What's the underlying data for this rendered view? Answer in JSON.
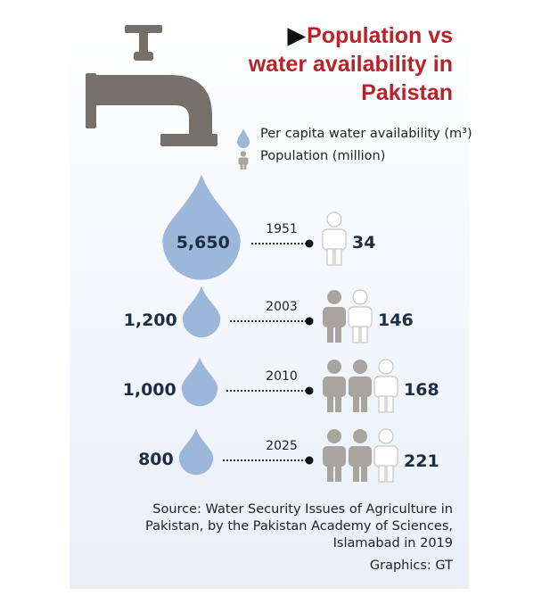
{
  "title": [
    "Population vs",
    "water availability in",
    "Pakistan"
  ],
  "legend": {
    "water": "Per capita water availability (m³)",
    "population": "Population (million)"
  },
  "colors": {
    "title": "#b8232a",
    "drop": "#9cb7d9",
    "person_filled": "#a8a49e",
    "person_outline": "#ffffff",
    "tap": "#76706a",
    "value_text": "#1d2e44"
  },
  "chart_data": {
    "type": "table",
    "title": "Population vs water availability in Pakistan",
    "columns": [
      "Year",
      "Per capita water availability (m³)",
      "Population (million)"
    ],
    "years": [
      "1951",
      "2003",
      "2010",
      "2025"
    ],
    "water_display": [
      "5,650",
      "1,200",
      "1,000",
      "800"
    ],
    "water": [
      5650,
      1200,
      1000,
      800
    ],
    "population": [
      34,
      146,
      168,
      221
    ]
  },
  "source": [
    "Source: Water Security Issues of Agriculture in",
    "Pakistan, by the Pakistan Academy of Sciences,",
    "Islamabad in 2019"
  ],
  "credit": "Graphics: GT"
}
